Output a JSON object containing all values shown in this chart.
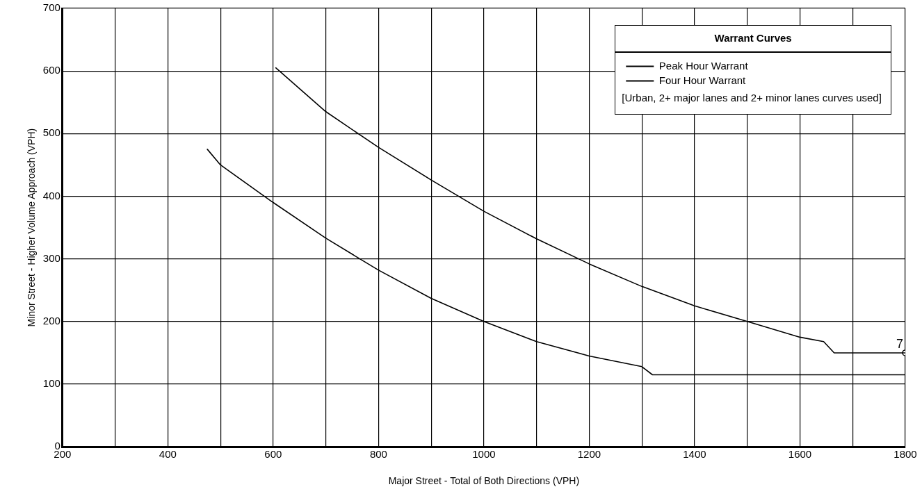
{
  "chart_data": {
    "type": "line",
    "xlabel": "Major Street - Total of Both Directions (VPH)",
    "ylabel": "Minor Street - Higher Volume Approach (VPH)",
    "legend_title": "Warrant Curves",
    "legend": "top right",
    "grid": true,
    "marker": "none",
    "line_style": "solid",
    "xlim": [
      200,
      1800
    ],
    "xticks": [
      200,
      {
        "value": 300,
        "label": null
      },
      400,
      {
        "value": 500,
        "label": null
      },
      600,
      {
        "value": 700,
        "label": null
      },
      800,
      {
        "value": 900,
        "label": null
      },
      1000,
      {
        "value": 1100,
        "label": null
      },
      1200,
      {
        "value": 1300,
        "label": null
      },
      1400,
      {
        "value": 1500,
        "label": null
      },
      1600,
      {
        "value": 1700,
        "label": null
      },
      1800
    ],
    "ylim": [
      0,
      700
    ],
    "yticks": [
      0,
      100,
      200,
      300,
      400,
      500,
      600,
      700
    ],
    "series": [
      {
        "name": "Peak Hour Warrant",
        "color": "#000000",
        "x": [
          605,
          700,
          800,
          900,
          1000,
          1100,
          1200,
          1300,
          1400,
          1500,
          1600,
          1645,
          1665,
          1800
        ],
        "values": [
          605,
          535,
          478,
          426,
          376,
          332,
          292,
          256,
          225,
          200,
          175,
          168,
          150,
          150
        ]
      },
      {
        "name": "Four Hour Warrant",
        "color": "#000000",
        "x": [
          475,
          500,
          600,
          700,
          800,
          900,
          1000,
          1100,
          1200,
          1300,
          1320,
          1800
        ],
        "values": [
          475,
          450,
          390,
          333,
          282,
          237,
          200,
          168,
          145,
          128,
          115,
          115
        ]
      },
      {
        "type": "scatter",
        "color": "#000000",
        "marker": "circle",
        "x": [
          1800
        ],
        "values": [
          150
        ]
      }
    ],
    "annotations": [
      "[Urban,  2+ major lanes and 2+ minor lanes curves used]",
      {
        "text": "7",
        "x": 1800,
        "y": 150
      }
    ]
  }
}
